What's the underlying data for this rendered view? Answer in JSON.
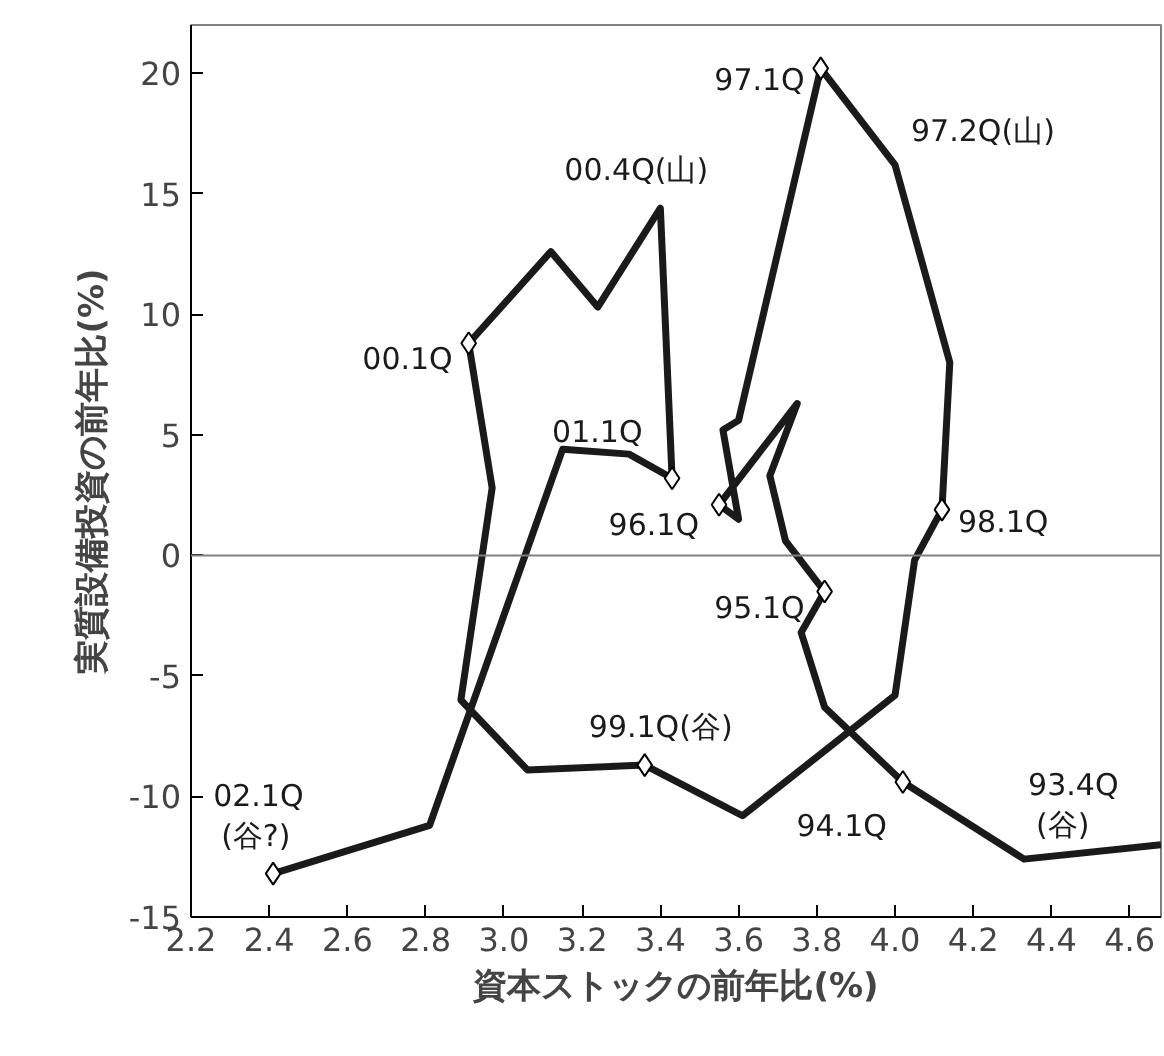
{
  "chart_data": {
    "type": "line",
    "xlabel": "資本ストックの前年比(%)",
    "ylabel": "実質設備投資の前年比(%)",
    "xlim": [
      2.2,
      4.68
    ],
    "ylim": [
      -15,
      22
    ],
    "xticks": [
      {
        "value": 2.2,
        "label": "2.2"
      },
      {
        "value": 2.4,
        "label": "2.4"
      },
      {
        "value": 2.6,
        "label": "2.6"
      },
      {
        "value": 2.8,
        "label": "2.8"
      },
      {
        "value": 3.0,
        "label": "3.0"
      },
      {
        "value": 3.2,
        "label": "3.2"
      },
      {
        "value": 3.4,
        "label": "3.4"
      },
      {
        "value": 3.6,
        "label": "3.6"
      },
      {
        "value": 3.8,
        "label": "3.8"
      },
      {
        "value": 4.0,
        "label": "4.0"
      },
      {
        "value": 4.2,
        "label": "4.2"
      },
      {
        "value": 4.4,
        "label": "4.4"
      },
      {
        "value": 4.6,
        "label": "4.6"
      }
    ],
    "yticks": [
      -15,
      -10,
      -5,
      0,
      5,
      10,
      15,
      20
    ],
    "grid": false,
    "series": [
      {
        "color": "#1a1a1a",
        "marker": "none",
        "line_style": "solid",
        "x": [
          4.68,
          4.33,
          4.02,
          3.82,
          3.76,
          3.82,
          3.72,
          3.68,
          3.75,
          3.55,
          3.6,
          3.56,
          3.6,
          3.81,
          4.0,
          4.14,
          4.12,
          4.05,
          4.0,
          3.61,
          3.36,
          3.06,
          2.89,
          2.97,
          2.91,
          3.12,
          3.24,
          3.4,
          3.43,
          3.32,
          3.15,
          2.81,
          2.41
        ],
        "values": [
          -12.0,
          -12.6,
          -9.4,
          -6.3,
          -3.2,
          -1.5,
          0.6,
          3.3,
          6.3,
          2.1,
          1.5,
          5.2,
          5.6,
          20.2,
          16.2,
          8.0,
          1.9,
          -0.2,
          -5.8,
          -10.8,
          -8.7,
          -8.9,
          -6.0,
          2.8,
          8.8,
          12.6,
          10.3,
          14.4,
          3.2,
          4.2,
          4.4,
          -11.2,
          -13.2
        ]
      },
      {
        "type": "scatter",
        "color": "#000000",
        "marker": "diamond",
        "x": [
          4.02,
          3.82,
          3.55,
          3.81,
          4.12,
          3.36,
          2.91,
          3.43,
          2.41
        ],
        "values": [
          -9.4,
          -1.5,
          2.1,
          20.2,
          1.9,
          -8.7,
          8.8,
          3.2,
          -13.2
        ]
      }
    ],
    "ref_lines": [
      {
        "axis": "y",
        "value": 0,
        "color": "#808080"
      }
    ],
    "annotations": [
      {
        "text": "93.4Q\n(谷)",
        "x": 4.33,
        "y": -12.6
      },
      {
        "text": "94.1Q",
        "x": 4.02,
        "y": -9.4
      },
      {
        "text": "95.1Q",
        "x": 3.82,
        "y": -1.5
      },
      {
        "text": "96.1Q",
        "x": 3.55,
        "y": 2.1
      },
      {
        "text": "97.1Q",
        "x": 3.81,
        "y": 20.2
      },
      {
        "text": "97.2Q(山)",
        "x": 4.0,
        "y": 16.2
      },
      {
        "text": "98.1Q",
        "x": 4.12,
        "y": 1.9
      },
      {
        "text": "99.1Q(谷)",
        "x": 3.36,
        "y": -8.7
      },
      {
        "text": "00.1Q",
        "x": 2.91,
        "y": 8.8
      },
      {
        "text": "00.4Q(山)",
        "x": 3.4,
        "y": 14.4
      },
      {
        "text": "01.1Q",
        "x": 3.43,
        "y": 3.2
      },
      {
        "text": "02.1Q\n(谷?)",
        "x": 2.41,
        "y": -13.2
      }
    ]
  }
}
